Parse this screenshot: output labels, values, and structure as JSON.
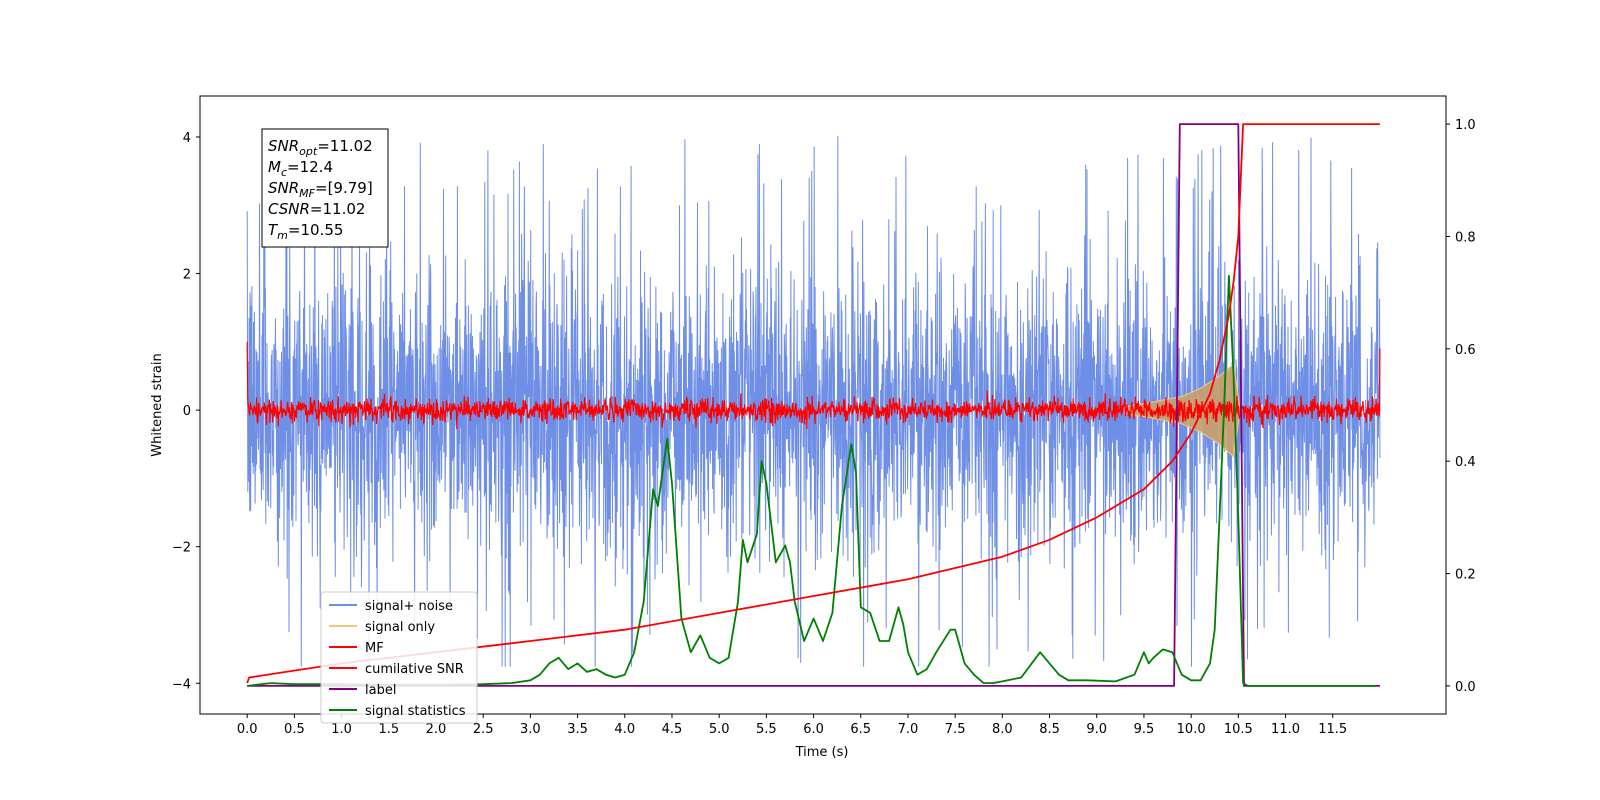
{
  "chart_data": {
    "type": "line",
    "xlabel": "Time (s)",
    "ylabel": "Whitened strain",
    "xlim": [
      -0.5,
      12.7
    ],
    "ylim_left": [
      -4.45,
      4.6
    ],
    "ylim_right": [
      -0.05,
      1.05
    ],
    "x_ticks": [
      0.0,
      0.5,
      1.0,
      1.5,
      2.0,
      2.5,
      3.0,
      3.5,
      4.0,
      4.5,
      5.0,
      5.5,
      6.0,
      6.5,
      7.0,
      7.5,
      8.0,
      8.5,
      9.0,
      9.5,
      10.0,
      10.5,
      11.0,
      11.5
    ],
    "x_tick_labels": [
      "0.0",
      "0.5",
      "1.0",
      "1.5",
      "2.0",
      "2.5",
      "3.0",
      "3.5",
      "4.0",
      "4.5",
      "5.0",
      "5.5",
      "6.0",
      "6.5",
      "7.0",
      "7.5",
      "8.0",
      "8.5",
      "9.0",
      "9.5",
      "10.0",
      "10.5",
      "11.0",
      "11.5"
    ],
    "y_left_ticks": [
      -4,
      -2,
      0,
      2,
      4
    ],
    "y_left_tick_labels": [
      "−4",
      "−2",
      "0",
      "2",
      "4"
    ],
    "y_right_ticks": [
      0.0,
      0.2,
      0.4,
      0.6,
      0.8,
      1.0
    ],
    "y_right_tick_labels": [
      "0.0",
      "0.2",
      "0.4",
      "0.6",
      "0.8",
      "1.0"
    ],
    "grid": false,
    "legend_position": "lower-left",
    "annotation": {
      "lines": [
        {
          "base": "SNR",
          "sub": "opt",
          "rest": "=11.02"
        },
        {
          "base": "M",
          "sub": "c",
          "rest": "=12.4"
        },
        {
          "base": "SNR",
          "sub": "MF",
          "rest": "=[9.79]"
        },
        {
          "base": "CSNR",
          "sub": "",
          "rest": "=11.02"
        },
        {
          "base": "T",
          "sub": "m",
          "rest": "=10.55"
        }
      ]
    },
    "series": [
      {
        "name": "signal+ noise",
        "color": "#6f8fe6",
        "axis": "left",
        "description_values": {
          "x_range": [
            0.0,
            12.0
          ],
          "mean": 0.0,
          "std": 1.0,
          "peak_max": 4.15,
          "peak_min": -3.75
        }
      },
      {
        "name": "signal only",
        "color": "#f5c77e",
        "axis": "left",
        "envelope": {
          "x": [
            9.3,
            9.6,
            9.9,
            10.1,
            10.3,
            10.45,
            10.52
          ],
          "amp": [
            0.05,
            0.12,
            0.2,
            0.32,
            0.5,
            0.68,
            0.0
          ]
        }
      },
      {
        "name": "MF",
        "color": "#ff0000",
        "axis": "left",
        "description_values": {
          "x_range": [
            0.0,
            12.0
          ],
          "baseline": 0.0,
          "noise_amp": 0.12,
          "start_value": 1.0,
          "end_value": 0.9
        }
      },
      {
        "name": "cumilative SNR",
        "color": "#ff0000",
        "axis": "right",
        "x": [
          0.0,
          0.02,
          1.0,
          2.0,
          3.0,
          4.0,
          5.0,
          6.0,
          7.0,
          8.0,
          8.5,
          9.0,
          9.5,
          9.8,
          10.0,
          10.2,
          10.3,
          10.4,
          10.45,
          10.5,
          10.55,
          12.0
        ],
        "y": [
          0.005,
          0.015,
          0.04,
          0.06,
          0.08,
          0.1,
          0.13,
          0.16,
          0.19,
          0.23,
          0.26,
          0.3,
          0.35,
          0.4,
          0.45,
          0.52,
          0.58,
          0.66,
          0.72,
          0.8,
          1.0,
          1.0
        ]
      },
      {
        "name": "label",
        "color": "#800080",
        "axis": "right",
        "x": [
          0.0,
          9.82,
          9.88,
          10.5,
          10.56,
          12.0
        ],
        "y": [
          0.0,
          0.0,
          1.0,
          1.0,
          0.0,
          0.0
        ]
      },
      {
        "name": "signal statistics",
        "color": "#008000",
        "axis": "right",
        "x": [
          0.0,
          0.25,
          0.5,
          1.0,
          1.5,
          2.0,
          2.5,
          2.8,
          3.0,
          3.1,
          3.2,
          3.3,
          3.4,
          3.5,
          3.6,
          3.7,
          3.8,
          3.9,
          4.0,
          4.1,
          4.2,
          4.3,
          4.35,
          4.4,
          4.45,
          4.5,
          4.6,
          4.7,
          4.8,
          4.9,
          5.0,
          5.1,
          5.2,
          5.25,
          5.3,
          5.4,
          5.45,
          5.5,
          5.6,
          5.7,
          5.75,
          5.8,
          5.9,
          6.0,
          6.05,
          6.1,
          6.2,
          6.3,
          6.4,
          6.45,
          6.5,
          6.6,
          6.7,
          6.8,
          6.9,
          6.95,
          7.0,
          7.1,
          7.2,
          7.3,
          7.45,
          7.5,
          7.6,
          7.7,
          7.8,
          7.9,
          8.0,
          8.2,
          8.4,
          8.5,
          8.6,
          8.7,
          8.9,
          9.2,
          9.4,
          9.5,
          9.55,
          9.6,
          9.7,
          9.8,
          9.9,
          10.0,
          10.1,
          10.2,
          10.25,
          10.3,
          10.35,
          10.4,
          10.45,
          10.5,
          10.55,
          10.6,
          11.0,
          11.5,
          11.95
        ],
        "y": [
          0.0,
          0.005,
          0.003,
          0.003,
          0.002,
          0.002,
          0.003,
          0.005,
          0.01,
          0.02,
          0.04,
          0.05,
          0.03,
          0.04,
          0.025,
          0.03,
          0.02,
          0.015,
          0.02,
          0.06,
          0.15,
          0.35,
          0.32,
          0.38,
          0.44,
          0.36,
          0.12,
          0.06,
          0.09,
          0.05,
          0.04,
          0.05,
          0.15,
          0.26,
          0.22,
          0.27,
          0.4,
          0.36,
          0.22,
          0.25,
          0.22,
          0.15,
          0.08,
          0.12,
          0.1,
          0.08,
          0.13,
          0.32,
          0.43,
          0.38,
          0.14,
          0.13,
          0.08,
          0.08,
          0.14,
          0.11,
          0.06,
          0.02,
          0.03,
          0.06,
          0.1,
          0.1,
          0.04,
          0.02,
          0.005,
          0.005,
          0.008,
          0.015,
          0.06,
          0.04,
          0.02,
          0.01,
          0.01,
          0.008,
          0.02,
          0.06,
          0.04,
          0.05,
          0.065,
          0.06,
          0.02,
          0.01,
          0.01,
          0.04,
          0.1,
          0.3,
          0.5,
          0.73,
          0.55,
          0.3,
          0.005,
          0.0,
          0.0,
          0.0,
          0.0
        ]
      }
    ]
  }
}
